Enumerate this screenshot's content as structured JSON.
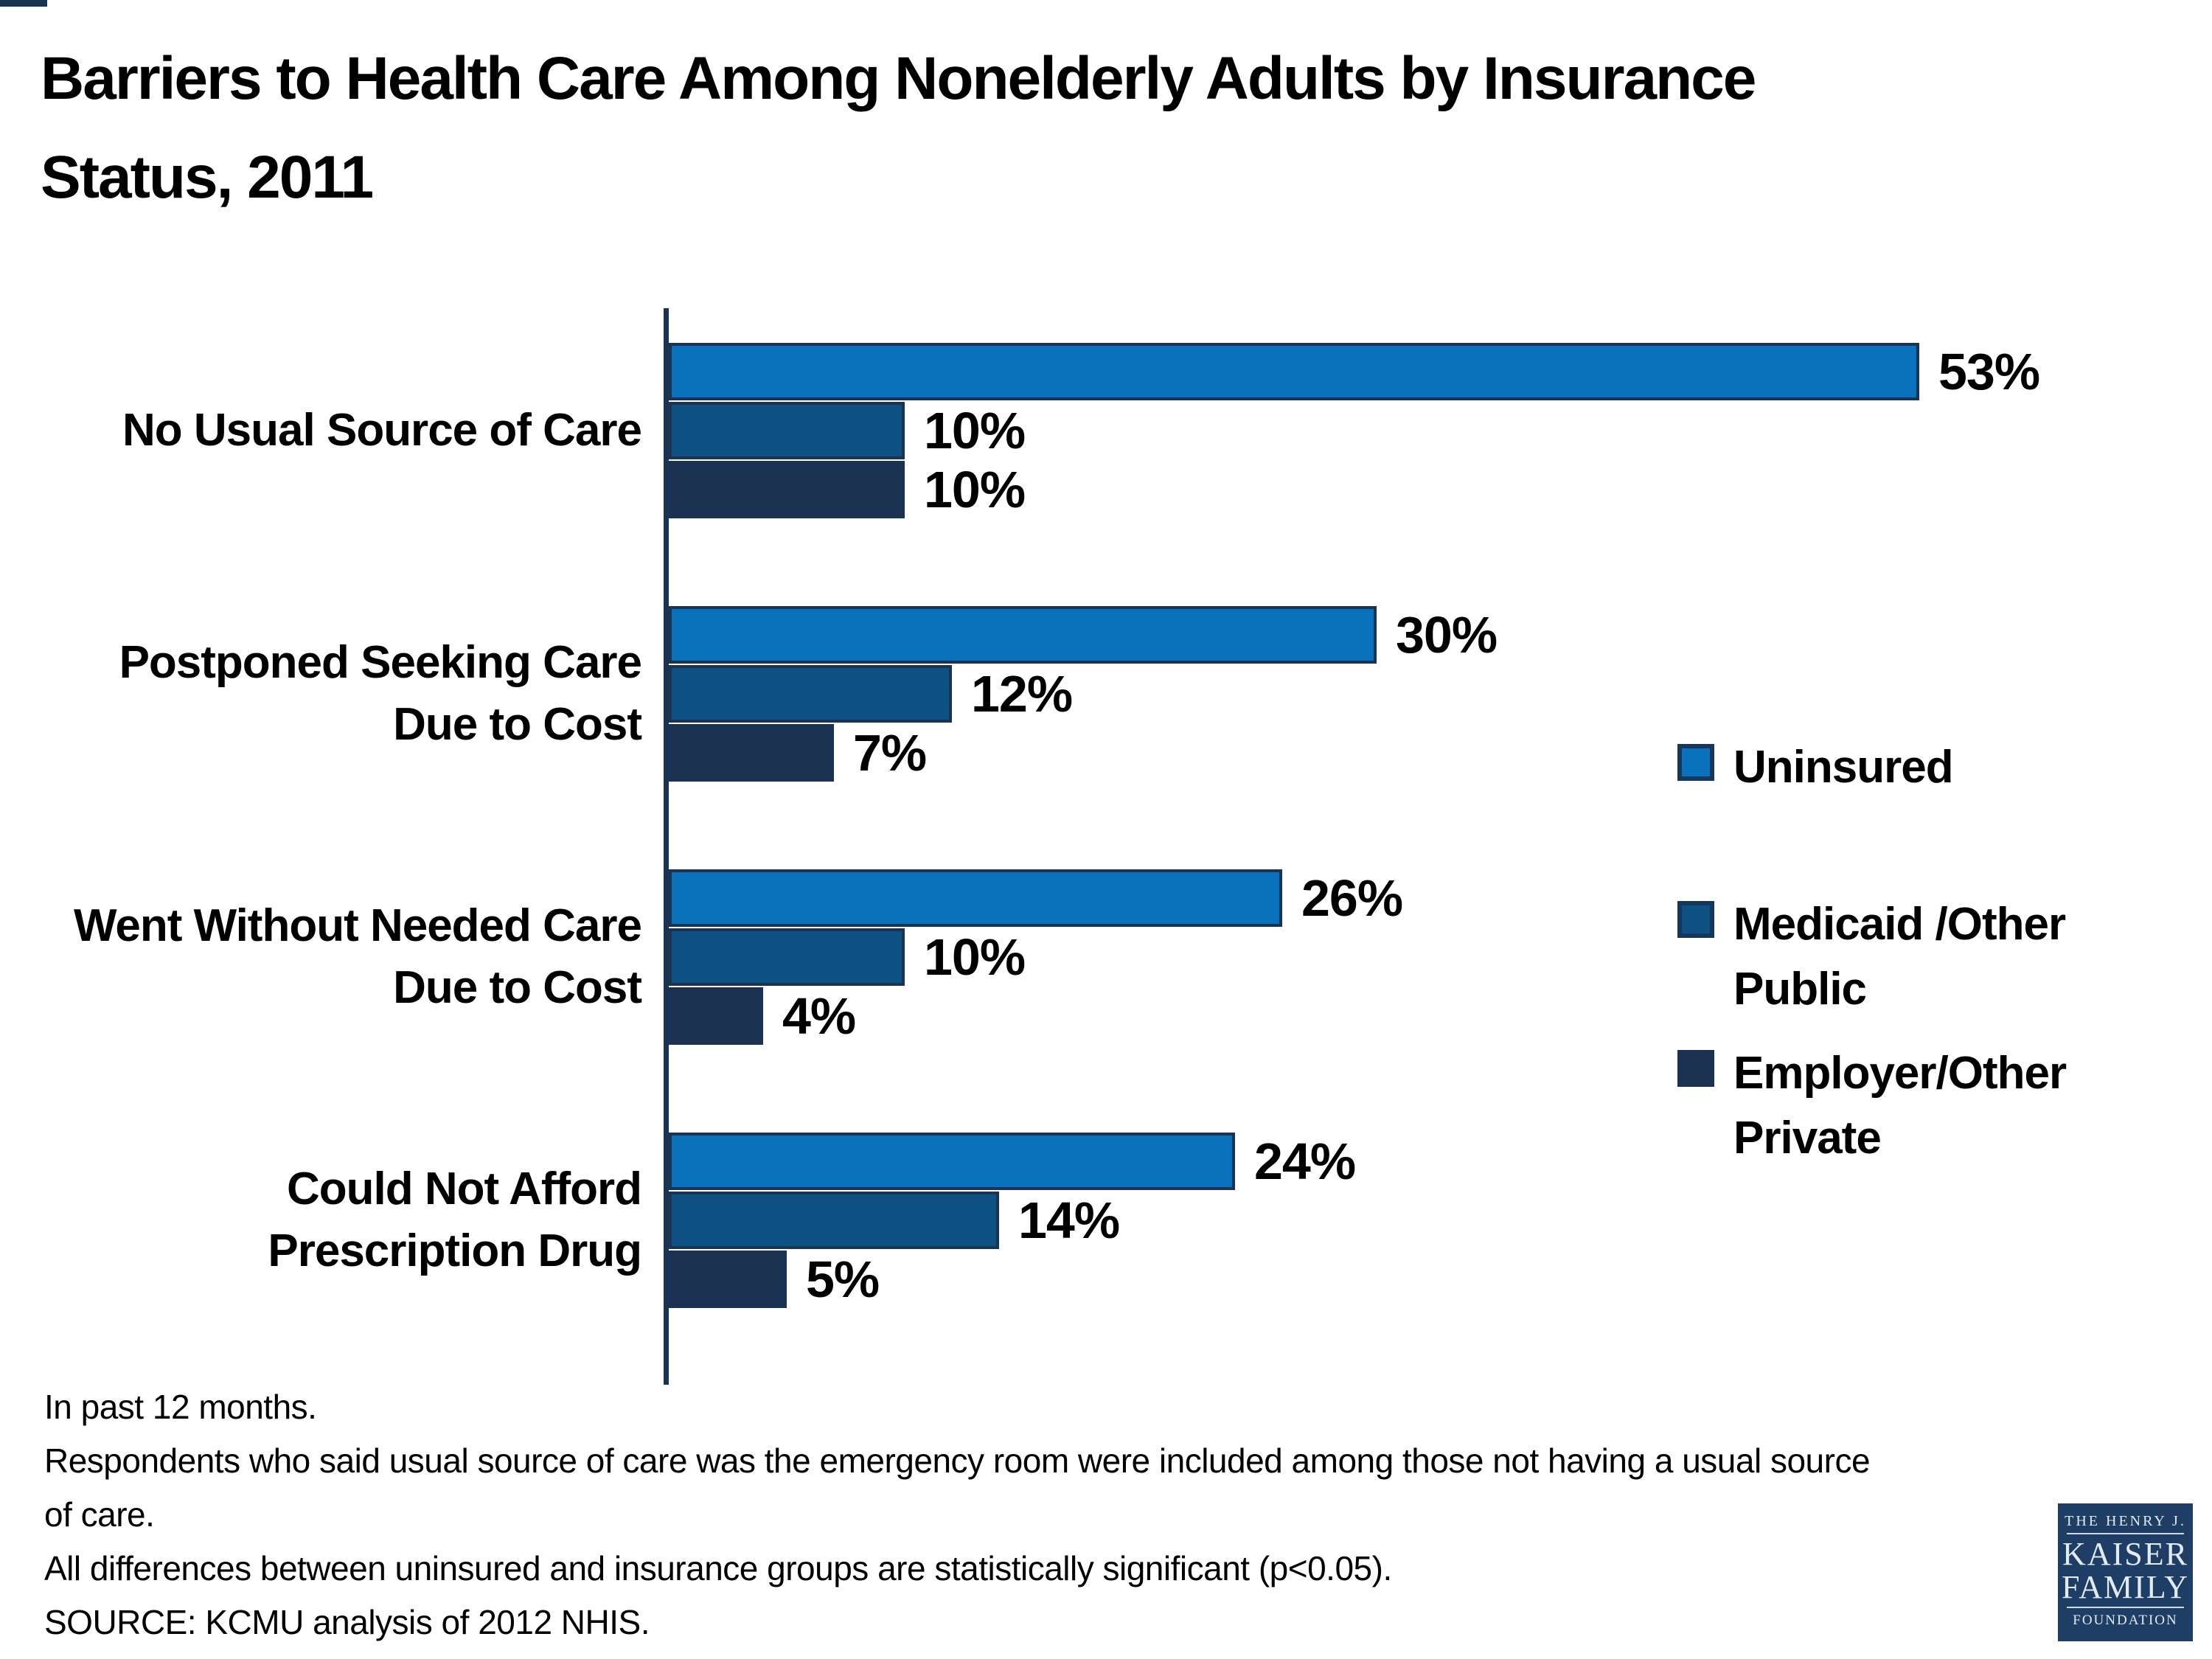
{
  "page": {
    "title_lines": [
      "Barriers to Health Care Among Nonelderly Adults by Insurance",
      "Status, 2011"
    ],
    "title": "Barriers to Health Care Among Nonelderly Adults by Insurance Status, 2011"
  },
  "chart_data": {
    "type": "bar",
    "orientation": "horizontal",
    "title": "Barriers to Health Care Among Nonelderly Adults by Insurance Status, 2011",
    "categories": [
      "No Usual Source of Care",
      "Postponed Seeking Care Due to Cost",
      "Went Without Needed Care Due to Cost",
      "Could Not Afford Prescription Drug"
    ],
    "category_lines": [
      [
        "No Usual Source of Care"
      ],
      [
        "Postponed Seeking Care",
        "Due to Cost"
      ],
      [
        "Went Without Needed Care",
        "Due to Cost"
      ],
      [
        "Could Not Afford",
        "Prescription Drug"
      ]
    ],
    "series": [
      {
        "name": "Uninsured",
        "legend_lines": [
          "Uninsured"
        ],
        "color": "#0a72bd",
        "border_color": "#1a3352",
        "values": [
          53,
          30,
          26,
          24
        ]
      },
      {
        "name": "Medicaid /Other Public",
        "legend_lines": [
          "Medicaid /Other",
          "Public"
        ],
        "color": "#0e5183",
        "border_color": "#1a3352",
        "values": [
          10,
          12,
          10,
          14
        ]
      },
      {
        "name": "Employer/Other Private",
        "legend_lines": [
          "Employer/Other",
          "Private"
        ],
        "color": "#1a3152",
        "border_color": "#1a3152",
        "values": [
          10,
          7,
          4,
          5
        ]
      }
    ],
    "value_suffix": "%",
    "data_labels": true,
    "xlim": [
      0,
      60
    ],
    "grid": false,
    "legend_position": "right",
    "axis_color": "#1a3352"
  },
  "footnotes": {
    "lines": [
      "In past 12 months.",
      "Respondents who said usual source of care was the emergency room were included among those not having a usual source",
      "of care.",
      "All differences between uninsured and insurance groups are statistically significant (p<0.05).",
      "SOURCE: KCMU analysis of 2012 NHIS."
    ]
  },
  "logo": {
    "top_line": "THE HENRY J.",
    "name_line1": "KAISER",
    "name_line2": "FAMILY",
    "bottom_line": "FOUNDATION",
    "background": "#1f3e66"
  },
  "colors": {
    "axis": "#1a3352",
    "uninsured": "#0a72bd",
    "medicaid_other_public": "#0e5183",
    "employer_other_private": "#1a3152",
    "text": "#000000"
  }
}
